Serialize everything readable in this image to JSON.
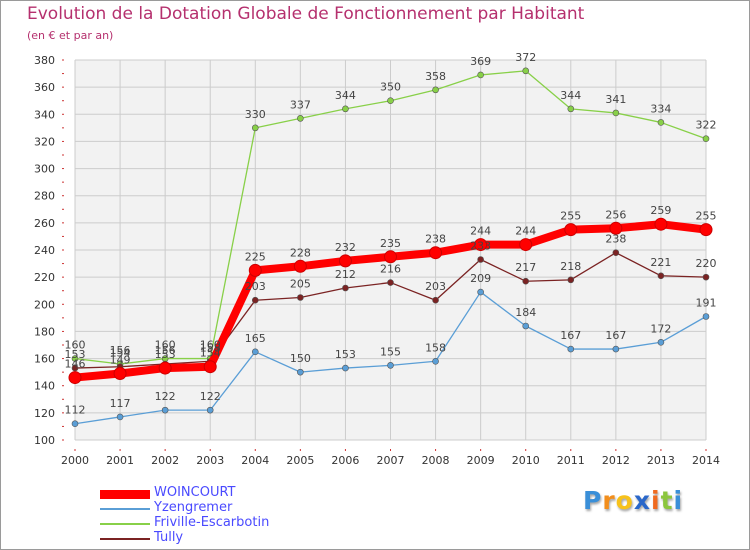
{
  "chart_data": {
    "type": "line",
    "title": "Evolution de la Dotation Globale de Fonctionnement par Habitant",
    "subtitle": "(en € et par an)",
    "xlabel": "",
    "ylabel": "",
    "categories": [
      "2000",
      "2001",
      "2002",
      "2003",
      "2004",
      "2005",
      "2006",
      "2007",
      "2008",
      "2009",
      "2010",
      "2011",
      "2012",
      "2013",
      "2014"
    ],
    "ylim": [
      100,
      380
    ],
    "yticks": [
      100,
      120,
      140,
      160,
      180,
      200,
      220,
      240,
      260,
      280,
      300,
      320,
      340,
      360,
      380
    ],
    "grid": true,
    "legend_position": "bottom-left",
    "series": [
      {
        "name": "WOINCOURT",
        "color": "#ff0000",
        "values": [
          146,
          149,
          153,
          154,
          225,
          228,
          232,
          235,
          238,
          244,
          244,
          255,
          256,
          259,
          255
        ]
      },
      {
        "name": "Yzengremer",
        "color": "#5a9ed6",
        "values": [
          112,
          117,
          122,
          122,
          165,
          150,
          153,
          155,
          158,
          209,
          184,
          167,
          167,
          172,
          191
        ]
      },
      {
        "name": "Friville-Escarbotin",
        "color": "#88d048",
        "values": [
          160,
          156,
          160,
          160,
          330,
          337,
          344,
          350,
          358,
          369,
          372,
          344,
          341,
          334,
          322
        ]
      },
      {
        "name": "Tully",
        "color": "#7b2323",
        "values": [
          153,
          154,
          156,
          158,
          203,
          205,
          212,
          216,
          203,
          233,
          217,
          218,
          238,
          221,
          220
        ]
      }
    ]
  },
  "logo": {
    "letters": [
      "P",
      "r",
      "o",
      "x",
      "i",
      "t",
      "i"
    ],
    "colors": [
      "#3a8fd8",
      "#f28e1c",
      "#f7c21b",
      "#2a67c9",
      "#f06a1f",
      "#8cc63e",
      "#3a8fd8"
    ]
  }
}
